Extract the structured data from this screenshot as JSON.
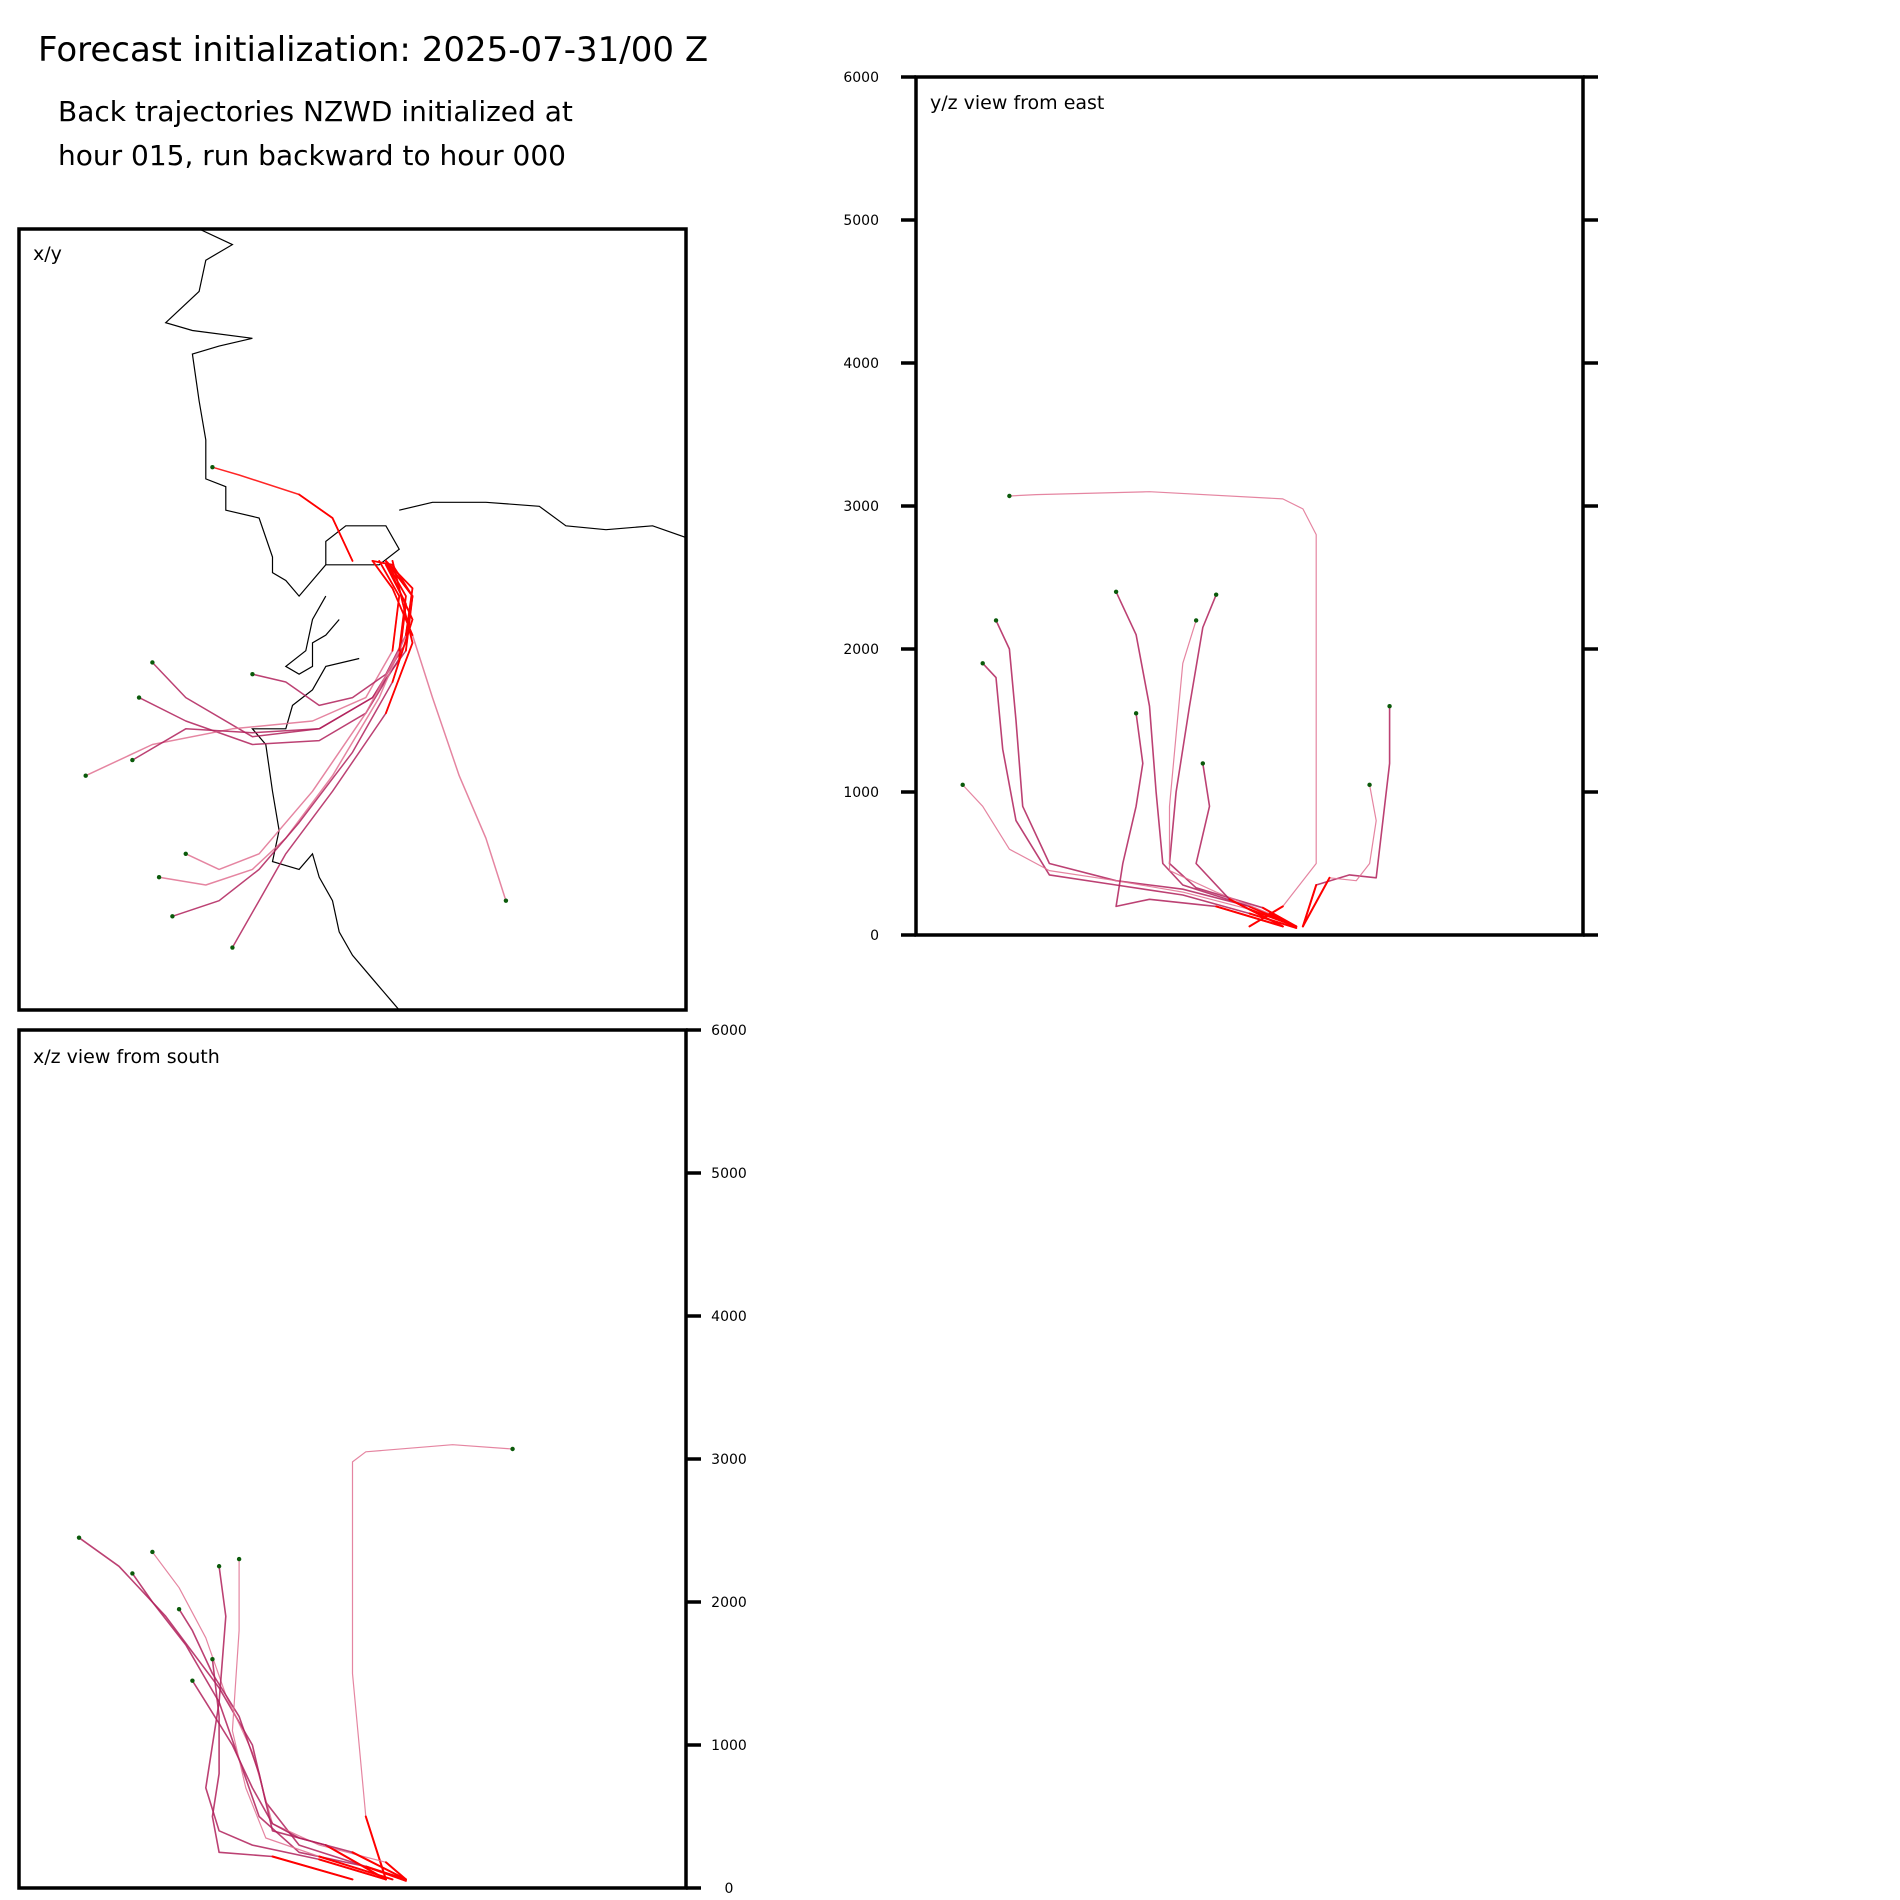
{
  "figure": {
    "title": "Forecast initialization: 2025-07-31/00 Z",
    "subtitle_lines": [
      "Back trajectories NZWD initialized at",
      "hour 015, run backward to hour 000"
    ]
  },
  "panels": {
    "xy": {
      "label": "x/y"
    },
    "yz": {
      "label": "y/z view from east"
    },
    "xz": {
      "label": "x/z view from south"
    }
  },
  "colors": {
    "trajectory_dark": "#b0205a",
    "trajectory_light": "#e07090",
    "trajectory_end": "#ff0000",
    "start_marker": "#0a5a0a",
    "coastline": "#000000"
  },
  "chart_data": [
    {
      "type": "line",
      "panel": "yz",
      "title": "y/z view from east",
      "ylabel": "",
      "ylim": [
        0,
        6000
      ],
      "yticks": [
        "0",
        "1000",
        "2000",
        "3000",
        "4000",
        "5000",
        "6000"
      ],
      "series": [
        {
          "x": [
            0.14,
            0.18,
            0.35,
            0.55,
            0.58,
            0.6,
            0.6,
            0.6,
            0.55,
            0.5
          ],
          "values": [
            3070,
            3080,
            3100,
            3050,
            2980,
            2800,
            1500,
            500,
            200,
            60
          ]
        },
        {
          "x": [
            0.12,
            0.14,
            0.15,
            0.16,
            0.2,
            0.3,
            0.4,
            0.5,
            0.57
          ],
          "values": [
            2200,
            2000,
            1500,
            900,
            500,
            380,
            320,
            200,
            60
          ]
        },
        {
          "x": [
            0.1,
            0.12,
            0.13,
            0.15,
            0.2,
            0.3,
            0.4,
            0.5,
            0.57
          ],
          "values": [
            1900,
            1800,
            1300,
            800,
            420,
            350,
            280,
            150,
            50
          ]
        },
        {
          "x": [
            0.07,
            0.1,
            0.14,
            0.2,
            0.3,
            0.4,
            0.5,
            0.57
          ],
          "values": [
            1050,
            900,
            600,
            450,
            380,
            300,
            180,
            60
          ]
        },
        {
          "x": [
            0.3,
            0.33,
            0.35,
            0.36,
            0.37,
            0.4,
            0.5,
            0.57
          ],
          "values": [
            2400,
            2100,
            1600,
            1000,
            500,
            350,
            200,
            60
          ]
        },
        {
          "x": [
            0.45,
            0.43,
            0.41,
            0.39,
            0.38,
            0.42,
            0.52,
            0.57
          ],
          "values": [
            2380,
            2150,
            1600,
            1000,
            500,
            330,
            190,
            60
          ]
        },
        {
          "x": [
            0.42,
            0.4,
            0.39,
            0.38,
            0.38,
            0.45,
            0.53,
            0.57
          ],
          "values": [
            2200,
            1900,
            1400,
            900,
            450,
            300,
            150,
            50
          ]
        },
        {
          "x": [
            0.43,
            0.44,
            0.43,
            0.42,
            0.47,
            0.55
          ],
          "values": [
            1200,
            900,
            700,
            500,
            250,
            60
          ]
        },
        {
          "x": [
            0.71,
            0.71,
            0.7,
            0.69,
            0.65,
            0.6,
            0.58
          ],
          "values": [
            1600,
            1200,
            800,
            400,
            420,
            350,
            60
          ]
        },
        {
          "x": [
            0.68,
            0.69,
            0.68,
            0.66,
            0.62,
            0.58
          ],
          "values": [
            1050,
            800,
            500,
            380,
            400,
            60
          ]
        },
        {
          "x": [
            0.33,
            0.34,
            0.33,
            0.31,
            0.3,
            0.35,
            0.45,
            0.55
          ],
          "values": [
            1550,
            1200,
            900,
            500,
            200,
            250,
            200,
            60
          ]
        }
      ]
    },
    {
      "type": "line",
      "panel": "xz",
      "title": "x/z view from south",
      "ylabel": "",
      "ylim": [
        0,
        6000
      ],
      "yticks": [
        "0",
        "1000",
        "2000",
        "3000",
        "4000",
        "5000",
        "6000"
      ],
      "series": [
        {
          "x": [
            0.74,
            0.65,
            0.52,
            0.5,
            0.5,
            0.5,
            0.52,
            0.55
          ],
          "values": [
            3070,
            3100,
            3050,
            2980,
            2800,
            1500,
            500,
            60
          ]
        },
        {
          "x": [
            0.09,
            0.15,
            0.22,
            0.3,
            0.35,
            0.37,
            0.42,
            0.52,
            0.58
          ],
          "values": [
            2450,
            2250,
            1900,
            1400,
            1000,
            600,
            300,
            150,
            60
          ]
        },
        {
          "x": [
            0.17,
            0.2,
            0.25,
            0.3,
            0.33,
            0.36,
            0.42,
            0.52,
            0.58
          ],
          "values": [
            2200,
            2000,
            1700,
            1300,
            900,
            500,
            250,
            150,
            50
          ]
        },
        {
          "x": [
            0.2,
            0.24,
            0.28,
            0.31,
            0.35,
            0.38,
            0.45,
            0.55,
            0.58
          ],
          "values": [
            2350,
            2100,
            1750,
            1350,
            950,
            450,
            300,
            180,
            60
          ]
        },
        {
          "x": [
            0.24,
            0.26,
            0.29,
            0.33,
            0.36,
            0.38,
            0.46,
            0.55
          ],
          "values": [
            1950,
            1800,
            1500,
            1200,
            800,
            400,
            300,
            60
          ]
        },
        {
          "x": [
            0.3,
            0.31,
            0.3,
            0.28,
            0.3,
            0.35,
            0.45,
            0.55
          ],
          "values": [
            2250,
            1900,
            1300,
            700,
            400,
            300,
            200,
            60
          ]
        },
        {
          "x": [
            0.33,
            0.33,
            0.32,
            0.34,
            0.37,
            0.45,
            0.56
          ],
          "values": [
            2300,
            1800,
            1100,
            700,
            350,
            220,
            60
          ]
        },
        {
          "x": [
            0.29,
            0.3,
            0.3,
            0.29,
            0.3,
            0.38,
            0.5
          ],
          "values": [
            1600,
            1200,
            800,
            500,
            250,
            220,
            60
          ]
        },
        {
          "x": [
            0.26,
            0.28,
            0.32,
            0.35,
            0.38,
            0.42,
            0.5,
            0.58
          ],
          "values": [
            1450,
            1300,
            1000,
            700,
            450,
            350,
            250,
            60
          ]
        }
      ]
    },
    {
      "type": "line",
      "panel": "xy",
      "title": "x/y",
      "series": [
        {
          "x": [
            0.29,
            0.33,
            0.42,
            0.47,
            0.5
          ],
          "y": [
            0.305,
            0.315,
            0.34,
            0.37,
            0.425
          ]
        },
        {
          "x": [
            0.73,
            0.7,
            0.66,
            0.62,
            0.59,
            0.56,
            0.53
          ],
          "y": [
            0.86,
            0.78,
            0.7,
            0.6,
            0.52,
            0.46,
            0.425
          ]
        },
        {
          "x": [
            0.2,
            0.25,
            0.35,
            0.45,
            0.53,
            0.58,
            0.59,
            0.56,
            0.53
          ],
          "y": [
            0.555,
            0.6,
            0.65,
            0.64,
            0.6,
            0.53,
            0.47,
            0.43,
            0.425
          ]
        },
        {
          "x": [
            0.18,
            0.25,
            0.35,
            0.45,
            0.52,
            0.57,
            0.58,
            0.55
          ],
          "y": [
            0.6,
            0.63,
            0.66,
            0.655,
            0.62,
            0.55,
            0.48,
            0.43
          ]
        },
        {
          "x": [
            0.1,
            0.2,
            0.32,
            0.44,
            0.52,
            0.56,
            0.57,
            0.54
          ],
          "y": [
            0.7,
            0.66,
            0.64,
            0.63,
            0.6,
            0.54,
            0.47,
            0.425
          ]
        },
        {
          "x": [
            0.17,
            0.25,
            0.35,
            0.45,
            0.53,
            0.58,
            0.59,
            0.55
          ],
          "y": [
            0.68,
            0.64,
            0.645,
            0.64,
            0.6,
            0.54,
            0.47,
            0.425
          ]
        },
        {
          "x": [
            0.35,
            0.4,
            0.45,
            0.5,
            0.55,
            0.58,
            0.59,
            0.55
          ],
          "y": [
            0.57,
            0.58,
            0.61,
            0.6,
            0.57,
            0.52,
            0.47,
            0.425
          ]
        },
        {
          "x": [
            0.21,
            0.28,
            0.35,
            0.4,
            0.47,
            0.54,
            0.58,
            0.59,
            0.55
          ],
          "y": [
            0.83,
            0.84,
            0.82,
            0.78,
            0.7,
            0.6,
            0.52,
            0.46,
            0.425
          ]
        },
        {
          "x": [
            0.23,
            0.3,
            0.36,
            0.42,
            0.5,
            0.56,
            0.59,
            0.55
          ],
          "y": [
            0.88,
            0.86,
            0.82,
            0.76,
            0.67,
            0.58,
            0.5,
            0.425
          ]
        },
        {
          "x": [
            0.32,
            0.36,
            0.4,
            0.47,
            0.55,
            0.59,
            0.56
          ],
          "y": [
            0.92,
            0.86,
            0.8,
            0.72,
            0.62,
            0.53,
            0.425
          ]
        },
        {
          "x": [
            0.25,
            0.3,
            0.36,
            0.44,
            0.52,
            0.57,
            0.58,
            0.55
          ],
          "y": [
            0.8,
            0.82,
            0.8,
            0.72,
            0.62,
            0.54,
            0.47,
            0.425
          ]
        }
      ],
      "coastline": [
        [
          [
            0.27,
            0.0
          ],
          [
            0.32,
            0.02
          ],
          [
            0.28,
            0.04
          ],
          [
            0.27,
            0.08
          ],
          [
            0.22,
            0.12
          ],
          [
            0.26,
            0.13
          ],
          [
            0.35,
            0.14
          ],
          [
            0.3,
            0.15
          ],
          [
            0.26,
            0.16
          ],
          [
            0.27,
            0.22
          ],
          [
            0.28,
            0.27
          ],
          [
            0.28,
            0.32
          ],
          [
            0.31,
            0.33
          ],
          [
            0.31,
            0.36
          ],
          [
            0.36,
            0.37
          ],
          [
            0.38,
            0.42
          ],
          [
            0.38,
            0.44
          ],
          [
            0.4,
            0.45
          ],
          [
            0.42,
            0.47
          ],
          [
            0.46,
            0.43
          ],
          [
            0.46,
            0.4
          ],
          [
            0.49,
            0.38
          ],
          [
            0.52,
            0.38
          ],
          [
            0.55,
            0.38
          ],
          [
            0.57,
            0.41
          ],
          [
            0.54,
            0.43
          ],
          [
            0.5,
            0.43
          ],
          [
            0.46,
            0.43
          ]
        ],
        [
          [
            0.57,
            0.36
          ],
          [
            0.62,
            0.35
          ],
          [
            0.7,
            0.35
          ],
          [
            0.78,
            0.355
          ],
          [
            0.82,
            0.38
          ],
          [
            0.88,
            0.385
          ],
          [
            0.95,
            0.38
          ],
          [
            1.0,
            0.395
          ]
        ],
        [
          [
            0.46,
            0.47
          ],
          [
            0.44,
            0.5
          ],
          [
            0.43,
            0.54
          ],
          [
            0.4,
            0.56
          ],
          [
            0.42,
            0.57
          ],
          [
            0.44,
            0.56
          ],
          [
            0.44,
            0.53
          ],
          [
            0.46,
            0.52
          ],
          [
            0.48,
            0.5
          ]
        ],
        [
          [
            0.51,
            0.55
          ],
          [
            0.46,
            0.56
          ],
          [
            0.44,
            0.59
          ],
          [
            0.41,
            0.61
          ],
          [
            0.4,
            0.64
          ],
          [
            0.35,
            0.64
          ],
          [
            0.37,
            0.66
          ],
          [
            0.38,
            0.72
          ],
          [
            0.39,
            0.77
          ],
          [
            0.38,
            0.81
          ],
          [
            0.42,
            0.82
          ],
          [
            0.44,
            0.8
          ],
          [
            0.45,
            0.83
          ],
          [
            0.47,
            0.86
          ],
          [
            0.48,
            0.9
          ],
          [
            0.5,
            0.93
          ],
          [
            0.53,
            0.96
          ],
          [
            0.56,
            0.99
          ],
          [
            0.57,
            1.0
          ]
        ]
      ]
    }
  ]
}
